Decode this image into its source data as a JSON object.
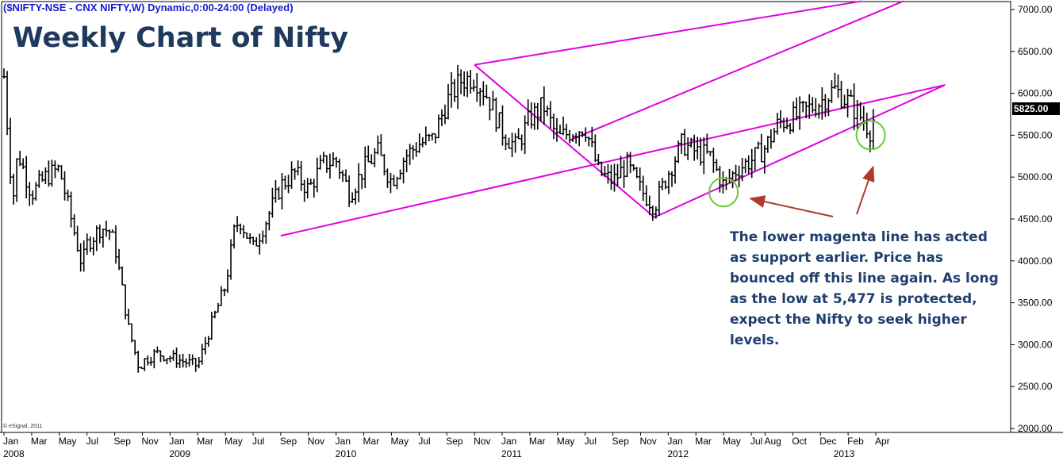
{
  "header": {
    "symbol_line": "($NIFTY-NSE - CNX NIFTY,W) Dynamic,0:00-24:00 (Delayed)",
    "title": "Weekly Chart of Nifty"
  },
  "annotation": {
    "text": "The lower magenta line has acted as support earlier. Price has bounced off this line again. As long as the low at 5,477 is protected, expect the Nifty to seek higher levels."
  },
  "copyright": "© eSignal, 2011",
  "colors": {
    "channel": "#e000e0",
    "price_bars": "#000000",
    "circles": "#66cc33",
    "arrows": "#b03a2e",
    "annotation_text": "#1f3f6f",
    "title": "#1f3a5c",
    "symbol_line": "#1a1acc"
  },
  "chart_data": {
    "type": "ohlc",
    "interval": "weekly",
    "ylim": [
      2000,
      7000
    ],
    "y_ticks": [
      "7000.00",
      "6500.00",
      "6000.00",
      "5500.00",
      "5000.00",
      "4500.00",
      "4000.00",
      "3500.00",
      "3000.00",
      "2500.00",
      "2000.00"
    ],
    "last_price_label": "5825.00",
    "x_month_labels": [
      {
        "label": "Jan",
        "date": "2008-01"
      },
      {
        "label": "Mar",
        "date": "2008-03"
      },
      {
        "label": "May",
        "date": "2008-05"
      },
      {
        "label": "Jul",
        "date": "2008-07"
      },
      {
        "label": "Sep",
        "date": "2008-09"
      },
      {
        "label": "Nov",
        "date": "2008-11"
      },
      {
        "label": "Jan",
        "date": "2009-01"
      },
      {
        "label": "Mar",
        "date": "2009-03"
      },
      {
        "label": "May",
        "date": "2009-05"
      },
      {
        "label": "Jul",
        "date": "2009-07"
      },
      {
        "label": "Sep",
        "date": "2009-09"
      },
      {
        "label": "Nov",
        "date": "2009-11"
      },
      {
        "label": "Jan",
        "date": "2010-01"
      },
      {
        "label": "Mar",
        "date": "2010-03"
      },
      {
        "label": "May",
        "date": "2010-05"
      },
      {
        "label": "Jul",
        "date": "2010-07"
      },
      {
        "label": "Sep",
        "date": "2010-09"
      },
      {
        "label": "Nov",
        "date": "2010-11"
      },
      {
        "label": "Jan",
        "date": "2011-01"
      },
      {
        "label": "Mar",
        "date": "2011-03"
      },
      {
        "label": "May",
        "date": "2011-05"
      },
      {
        "label": "Jul",
        "date": "2011-07"
      },
      {
        "label": "Sep",
        "date": "2011-09"
      },
      {
        "label": "Nov",
        "date": "2011-11"
      },
      {
        "label": "Jan",
        "date": "2012-01"
      },
      {
        "label": "Mar",
        "date": "2012-03"
      },
      {
        "label": "May",
        "date": "2012-05"
      },
      {
        "label": "Jul",
        "date": "2012-07"
      },
      {
        "label": "Aug",
        "date": "2012-08"
      },
      {
        "label": "Oct",
        "date": "2012-10"
      },
      {
        "label": "Dec",
        "date": "2012-12"
      },
      {
        "label": "Feb",
        "date": "2013-02"
      },
      {
        "label": "Apr",
        "date": "2013-04"
      }
    ],
    "x_year_labels": [
      {
        "label": "2008",
        "date": "2008-01"
      },
      {
        "label": "2009",
        "date": "2009-01"
      },
      {
        "label": "2010",
        "date": "2010-01"
      },
      {
        "label": "2011",
        "date": "2011-01"
      },
      {
        "label": "2012",
        "date": "2012-01"
      },
      {
        "label": "2013",
        "date": "2013-01"
      }
    ],
    "price_path": [
      [
        "2008-01",
        6200
      ],
      [
        "2008-01-20",
        4700
      ],
      [
        "2008-02",
        5300
      ],
      [
        "2008-03",
        4800
      ],
      [
        "2008-04",
        5000
      ],
      [
        "2008-05",
        5100
      ],
      [
        "2008-06",
        4400
      ],
      [
        "2008-06-20",
        3950
      ],
      [
        "2008-07",
        4200
      ],
      [
        "2008-08",
        4400
      ],
      [
        "2008-08-20",
        4350
      ],
      [
        "2008-09",
        4200
      ],
      [
        "2008-10",
        3200
      ],
      [
        "2008-10-25",
        2700
      ],
      [
        "2008-11",
        2800
      ],
      [
        "2008-12",
        2900
      ],
      [
        "2009-01",
        2850
      ],
      [
        "2009-02",
        2800
      ],
      [
        "2009-03",
        2750
      ],
      [
        "2009-04",
        3250
      ],
      [
        "2009-05",
        3700
      ],
      [
        "2009-05-20",
        4350
      ],
      [
        "2009-06",
        4500
      ],
      [
        "2009-07",
        4150
      ],
      [
        "2009-08",
        4500
      ],
      [
        "2009-09",
        4900
      ],
      [
        "2009-10",
        5050
      ],
      [
        "2009-11",
        4850
      ],
      [
        "2009-12",
        5150
      ],
      [
        "2010-01",
        5200
      ],
      [
        "2010-02",
        4800
      ],
      [
        "2010-03",
        5100
      ],
      [
        "2010-04",
        5300
      ],
      [
        "2010-05",
        4950
      ],
      [
        "2010-06",
        5250
      ],
      [
        "2010-07",
        5400
      ],
      [
        "2010-08",
        5450
      ],
      [
        "2010-09",
        5900
      ],
      [
        "2010-10",
        6150
      ],
      [
        "2010-11",
        6200
      ],
      [
        "2010-12",
        5950
      ],
      [
        "2011-01",
        5550
      ],
      [
        "2011-02",
        5350
      ],
      [
        "2011-03",
        5700
      ],
      [
        "2011-04",
        5850
      ],
      [
        "2011-05",
        5450
      ],
      [
        "2011-06",
        5550
      ],
      [
        "2011-07",
        5600
      ],
      [
        "2011-08",
        5050
      ],
      [
        "2011-09",
        4950
      ],
      [
        "2011-10",
        5150
      ],
      [
        "2011-11",
        4850
      ],
      [
        "2011-12",
        4650
      ],
      [
        "2012-01",
        5050
      ],
      [
        "2012-02",
        5400
      ],
      [
        "2012-03",
        5300
      ],
      [
        "2012-04",
        5250
      ],
      [
        "2012-05",
        4900
      ],
      [
        "2012-06",
        5100
      ],
      [
        "2012-07",
        5200
      ],
      [
        "2012-08",
        5350
      ],
      [
        "2012-09",
        5650
      ],
      [
        "2012-10",
        5700
      ],
      [
        "2012-11",
        5800
      ],
      [
        "2012-12",
        5900
      ],
      [
        "2013-01",
        6050
      ],
      [
        "2013-02",
        5900
      ],
      [
        "2013-03",
        5700
      ],
      [
        "2013-03-20",
        5550
      ],
      [
        "2013-04",
        5825
      ]
    ],
    "channel_lines": [
      {
        "name": "upper",
        "from": [
          "2010-11",
          6340
        ],
        "to": [
          "2013-03",
          7100
        ]
      },
      {
        "name": "middle",
        "from": [
          "2011-06",
          5450
        ],
        "to": [
          "2013-06",
          7100
        ]
      },
      {
        "name": "lower",
        "from": [
          "2009-09",
          4300
        ],
        "to": [
          "2013-09",
          6100
        ]
      },
      {
        "name": "diagonal",
        "from": [
          "2010-11",
          6340
        ],
        "to": [
          "2011-12",
          4520
        ]
      },
      {
        "name": "lower-start",
        "from": [
          "2011-12",
          4520
        ],
        "to": [
          "2013-09",
          6100
        ]
      }
    ],
    "highlight_circles": [
      {
        "date": "2012-05",
        "price": 4820
      },
      {
        "date": "2013-03-20",
        "price": 5500
      }
    ],
    "support_low": 5477
  }
}
